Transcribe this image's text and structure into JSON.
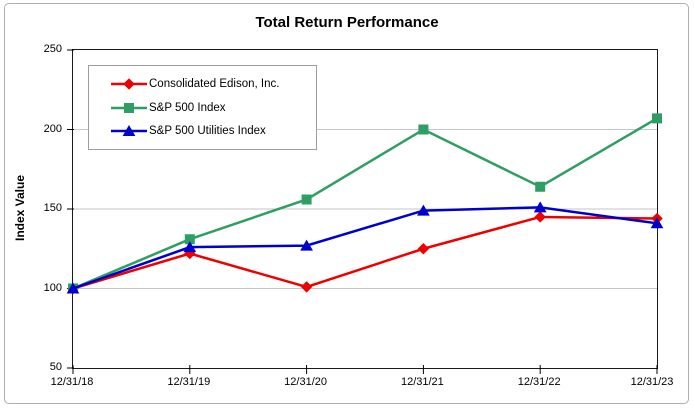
{
  "chart_data": {
    "type": "line",
    "title": "Total Return Performance",
    "xlabel": "",
    "ylabel": "Index Value",
    "categories": [
      "12/31/18",
      "12/31/19",
      "12/31/20",
      "12/31/21",
      "12/31/22",
      "12/31/23"
    ],
    "series": [
      {
        "name": "Consolidated Edison, Inc.",
        "color": "#ee0000",
        "marker": "diamond",
        "values": [
          100,
          122,
          101,
          125,
          145,
          144
        ]
      },
      {
        "name": "S&P 500 Index",
        "color": "#2f9e63",
        "marker": "square",
        "values": [
          100,
          131,
          156,
          200,
          164,
          207
        ]
      },
      {
        "name": "S&P 500 Utilities Index",
        "color": "#0000cd",
        "marker": "triangle",
        "values": [
          100,
          126,
          127,
          149,
          151,
          141
        ]
      }
    ],
    "ylim": [
      50,
      250
    ],
    "yticks": [
      50,
      100,
      150,
      200,
      250
    ],
    "gridlines": [
      100,
      150,
      200
    ],
    "grid": "horizontal",
    "legend_position": "top-left-inside",
    "colors": {
      "axis": "#1a1a1a",
      "gridline": "#c6c6c6",
      "text": "#000000",
      "frame_border": "#aeaeae",
      "legend_border": "#9e9e9e",
      "background": "#ffffff"
    }
  }
}
